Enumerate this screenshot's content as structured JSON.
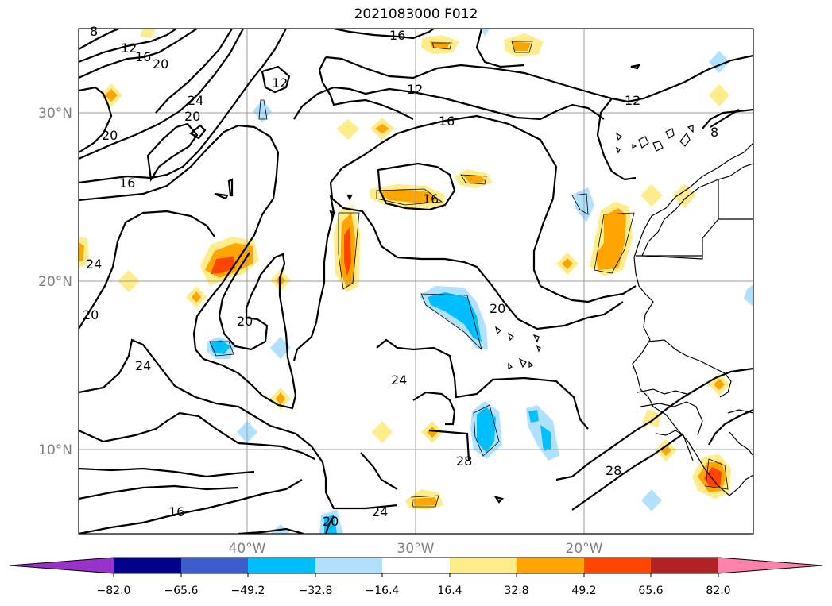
{
  "title": "2021083000 F012",
  "map": {
    "lat_labels": [
      "30°N",
      "20°N",
      "10°N"
    ],
    "lon_labels": [
      "40°W",
      "30°W",
      "20°W"
    ]
  },
  "contour_labels": [
    "8",
    "12",
    "16",
    "20",
    "24",
    "20",
    "20",
    "16",
    "20",
    "24",
    "12",
    "12",
    "16",
    "16",
    "12",
    "8",
    "16",
    "20",
    "24",
    "24",
    "20",
    "16",
    "24",
    "28",
    "28",
    "20"
  ],
  "colorbar": {
    "ticks": [
      "−82.0",
      "−65.6",
      "−49.2",
      "−32.8",
      "−16.4",
      "16.4",
      "32.8",
      "49.2",
      "65.6",
      "82.0"
    ],
    "colors": [
      "#9932cc",
      "#00008b",
      "#3a5fcd",
      "#00bfff",
      "#b0e2ff",
      "#ffffff",
      "#ffec8b",
      "#ffa500",
      "#ff4500",
      "#b22222",
      "#ff82ab"
    ]
  }
}
